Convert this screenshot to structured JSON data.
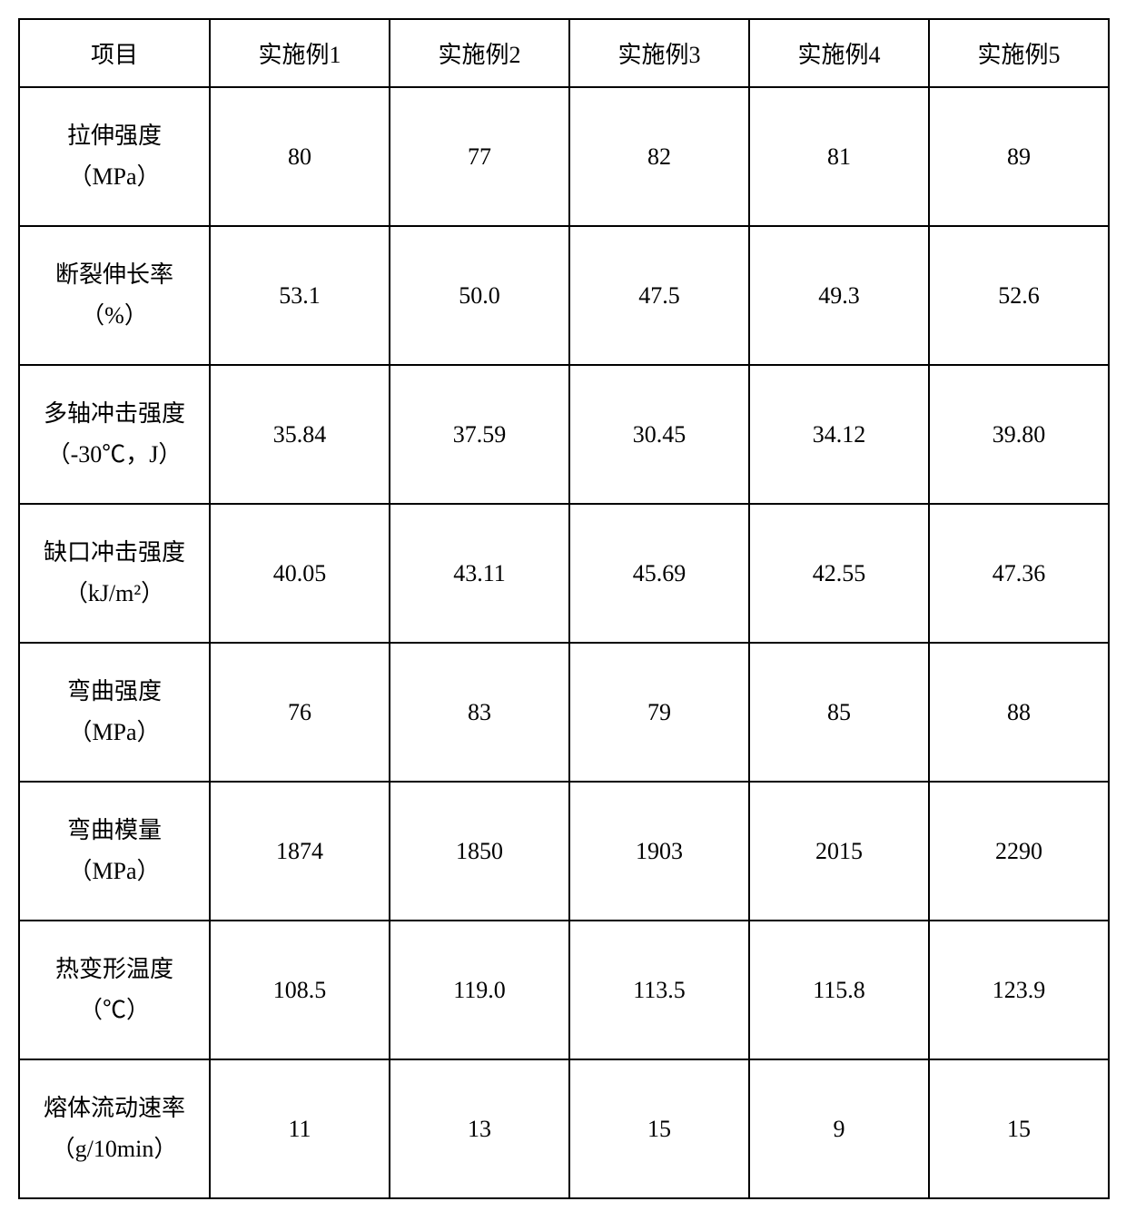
{
  "table": {
    "columns": [
      "项目",
      "实施例1",
      "实施例2",
      "实施例3",
      "实施例4",
      "实施例5"
    ],
    "rows": [
      {
        "label_line1": "拉伸强度",
        "label_line2": "（MPa）",
        "values": [
          "80",
          "77",
          "82",
          "81",
          "89"
        ]
      },
      {
        "label_line1": "断裂伸长率",
        "label_line2": "（%）",
        "values": [
          "53.1",
          "50.0",
          "47.5",
          "49.3",
          "52.6"
        ]
      },
      {
        "label_line1": "多轴冲击强度",
        "label_line2": "（-30℃，J）",
        "values": [
          "35.84",
          "37.59",
          "30.45",
          "34.12",
          "39.80"
        ]
      },
      {
        "label_line1": "缺口冲击强度",
        "label_line2": "（kJ/m²）",
        "values": [
          "40.05",
          "43.11",
          "45.69",
          "42.55",
          "47.36"
        ]
      },
      {
        "label_line1": "弯曲强度",
        "label_line2": "（MPa）",
        "values": [
          "76",
          "83",
          "79",
          "85",
          "88"
        ]
      },
      {
        "label_line1": "弯曲模量",
        "label_line2": "（MPa）",
        "values": [
          "1874",
          "1850",
          "1903",
          "2015",
          "2290"
        ]
      },
      {
        "label_line1": "热变形温度",
        "label_line2": "（℃）",
        "values": [
          "108.5",
          "119.0",
          "113.5",
          "115.8",
          "123.9"
        ]
      },
      {
        "label_line1": "熔体流动速率",
        "label_line2": "（g/10min）",
        "values": [
          "11",
          "13",
          "15",
          "9",
          "15"
        ]
      }
    ],
    "border_color": "#000000",
    "background_color": "#ffffff",
    "text_color": "#000000",
    "header_fontsize": 26,
    "cell_fontsize": 26,
    "header_row_height": 75,
    "data_row_height": 153
  }
}
